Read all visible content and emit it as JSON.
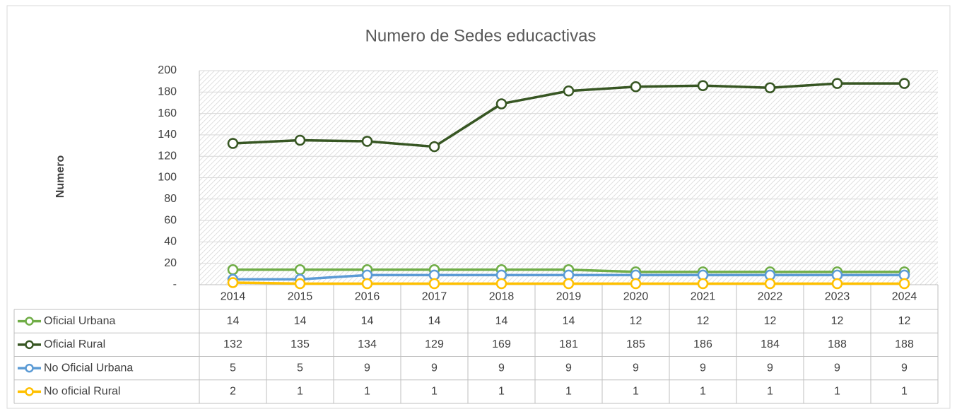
{
  "chart_data": {
    "type": "line",
    "title": "Numero de Sedes educactivas",
    "y_label": "Numero",
    "categories": [
      "2014",
      "2015",
      "2016",
      "2017",
      "2018",
      "2019",
      "2020",
      "2021",
      "2022",
      "2023",
      "2024"
    ],
    "series": [
      {
        "name": "Oficial Urbana",
        "color": "#70ad47",
        "values": [
          14,
          14,
          14,
          14,
          14,
          14,
          12,
          12,
          12,
          12,
          12
        ]
      },
      {
        "name": "Oficial Rural",
        "color": "#375623",
        "values": [
          132,
          135,
          134,
          129,
          169,
          181,
          185,
          186,
          184,
          188,
          188
        ]
      },
      {
        "name": "No Oficial Urbana",
        "color": "#5b9bd5",
        "values": [
          5,
          5,
          9,
          9,
          9,
          9,
          9,
          9,
          9,
          9,
          9
        ]
      },
      {
        "name": "No oficial Rural",
        "color": "#ffc000",
        "values": [
          2,
          1,
          1,
          1,
          1,
          1,
          1,
          1,
          1,
          1,
          1
        ]
      }
    ],
    "ylim": [
      0,
      200
    ],
    "yticks": [
      {
        "value": 0,
        "label": "-"
      },
      20,
      40,
      60,
      80,
      100,
      120,
      140,
      160,
      180,
      200
    ],
    "grid": true
  }
}
